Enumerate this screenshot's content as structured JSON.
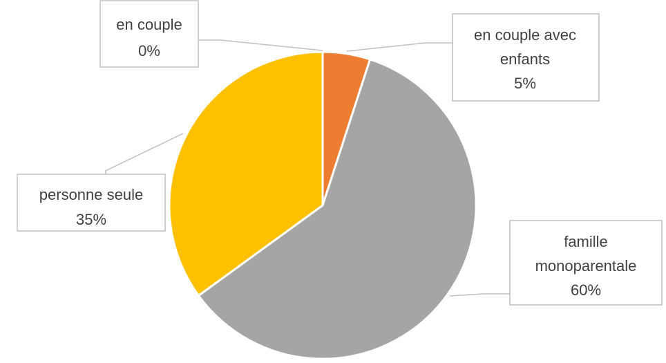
{
  "chart_data": {
    "type": "pie",
    "title": "",
    "categories": [
      "en couple avec enfants",
      "famille monoparentale",
      "personne seule",
      "en couple"
    ],
    "values": [
      5,
      60,
      35,
      0
    ],
    "colors": [
      "#ED7D31",
      "#A5A5A5",
      "#FFC000",
      "#4472C4"
    ],
    "data_labels": [
      {
        "name_lines": [
          "en couple avec",
          "enfants"
        ],
        "percent": "5%"
      },
      {
        "name_lines": [
          "famille",
          "monoparentale"
        ],
        "percent": "60%"
      },
      {
        "name_lines": [
          "personne seule"
        ],
        "percent": "35%"
      },
      {
        "name_lines": [
          "en couple"
        ],
        "percent": "0%"
      }
    ],
    "start_angle_deg": 0,
    "direction": "clockwise",
    "legend": "none"
  }
}
